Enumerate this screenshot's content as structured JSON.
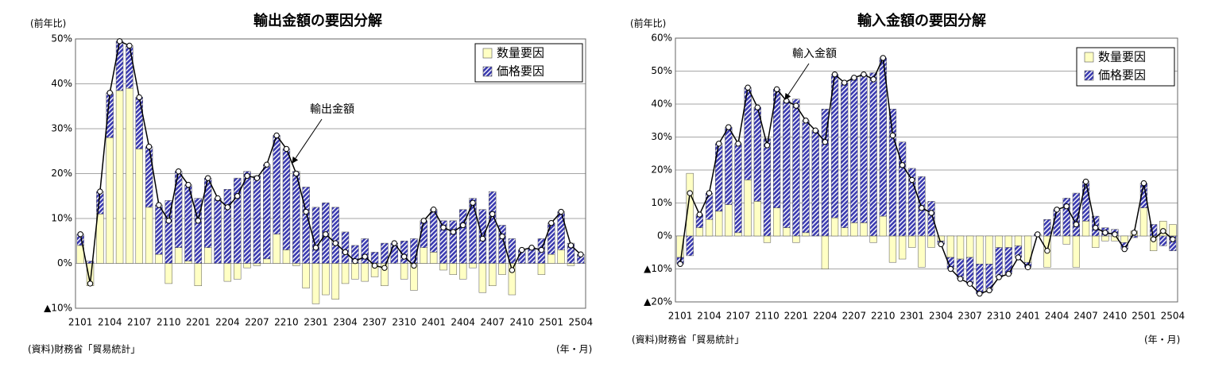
{
  "chart_data": [
    {
      "type": "bar",
      "title": "輸出金額の要因分解",
      "y_label": "(前年比)",
      "x_label": "(年・月)",
      "source": "(資料)財務省「貿易統計」",
      "legend": "upper right",
      "grid": true,
      "categories": [
        "2101",
        null,
        null,
        "2104",
        null,
        null,
        "2107",
        null,
        null,
        "2110",
        null,
        null,
        "2201",
        null,
        null,
        "2204",
        null,
        null,
        "2207",
        null,
        null,
        "2210",
        null,
        null,
        "2301",
        null,
        null,
        "2304",
        null,
        null,
        "2307",
        null,
        null,
        "2310",
        null,
        null,
        "2401",
        null,
        null,
        "2404",
        null,
        null,
        "2407",
        null,
        null,
        "2410",
        null,
        null,
        "2501",
        null,
        null,
        "2504"
      ],
      "ylim": [
        -10,
        50
      ],
      "yticks": [
        {
          "value": -10,
          "label": "▲10%"
        },
        {
          "value": 0,
          "label": "0%"
        },
        {
          "value": 10,
          "label": "10%"
        },
        {
          "value": 20,
          "label": "20%"
        },
        {
          "value": 30,
          "label": "30%"
        },
        {
          "value": 40,
          "label": "40%"
        },
        {
          "value": 50,
          "label": "50%"
        }
      ],
      "series": [
        {
          "name": "数量要因",
          "color": "#ffffc4",
          "values": [
            4,
            -5,
            11,
            28,
            38.5,
            39,
            25.5,
            12.5,
            2,
            -4.5,
            3.5,
            0.5,
            -5,
            3.5,
            0,
            -4,
            -3.5,
            -1,
            -0.5,
            1,
            6.5,
            3,
            -0.5,
            -5.5,
            -9,
            -7,
            -8,
            -4.5,
            -3.5,
            -4,
            -3,
            -5,
            0,
            -3.5,
            -6,
            3.5,
            2.5,
            -1.5,
            -2.5,
            -3.5,
            -1,
            -6.5,
            -5,
            -2.5,
            -7,
            0,
            0,
            -2.5,
            2,
            3,
            -0.5,
            0
          ]
        },
        {
          "name": "価格要因",
          "color": "#3a3ab0",
          "values": [
            2.5,
            0.5,
            5,
            10,
            11,
            9.5,
            11.5,
            13.5,
            11,
            14,
            17,
            17,
            14.5,
            15.5,
            14.5,
            16.5,
            19,
            20.5,
            19.5,
            21,
            22,
            22.5,
            20.5,
            17,
            12.5,
            13.5,
            12.5,
            7,
            4,
            5.5,
            2.5,
            4.5,
            4.5,
            5,
            5.5,
            6,
            9.5,
            9.5,
            9.5,
            12,
            14.5,
            12,
            16,
            8.5,
            5.5,
            3,
            3.5,
            5.5,
            7,
            8.5,
            4.5,
            2
          ]
        },
        {
          "name": "輸出金額",
          "type": "line",
          "color": "#000000",
          "values": [
            6.5,
            -4.5,
            16,
            38,
            49.5,
            48.5,
            37,
            26,
            13,
            9.5,
            20.5,
            17.5,
            9.5,
            19,
            14.5,
            12.5,
            15,
            19.5,
            19,
            22,
            28.5,
            25.5,
            20,
            11.5,
            3.5,
            6.5,
            4.5,
            2.5,
            0.5,
            1.5,
            -0.5,
            -1,
            4.5,
            1.5,
            -0.5,
            9.5,
            12,
            8,
            7,
            8.5,
            13.5,
            5.5,
            11,
            6,
            -1.5,
            3,
            3.5,
            3,
            9,
            11.5,
            4,
            2
          ]
        }
      ]
    },
    {
      "type": "bar",
      "title": "輸入金額の要因分解",
      "y_label": "(前年比)",
      "x_label": "(年・月)",
      "source": "(資料)財務省「貿易統計」",
      "legend": "upper right",
      "grid": true,
      "categories": [
        "2101",
        null,
        null,
        "2104",
        null,
        null,
        "2107",
        null,
        null,
        "2110",
        null,
        null,
        "2201",
        null,
        null,
        "2204",
        null,
        null,
        "2207",
        null,
        null,
        "2210",
        null,
        null,
        "2301",
        null,
        null,
        "2304",
        null,
        null,
        "2307",
        null,
        null,
        "2310",
        null,
        null,
        "2401",
        null,
        null,
        "2404",
        null,
        null,
        "2407",
        null,
        null,
        "2410",
        null,
        null,
        "2501",
        null,
        null,
        "2504"
      ],
      "ylim": [
        -20,
        60
      ],
      "yticks": [
        {
          "value": -20,
          "label": "▲20%"
        },
        {
          "value": -10,
          "label": "▲10%"
        },
        {
          "value": 0,
          "label": "0%"
        },
        {
          "value": 10,
          "label": "10%"
        },
        {
          "value": 20,
          "label": "20%"
        },
        {
          "value": 30,
          "label": "30%"
        },
        {
          "value": 40,
          "label": "40%"
        },
        {
          "value": 50,
          "label": "50%"
        },
        {
          "value": 60,
          "label": "60%"
        }
      ],
      "series": [
        {
          "name": "数量要因",
          "color": "#ffffc4",
          "values": [
            -6.5,
            19,
            2.5,
            5,
            7.5,
            9.5,
            1,
            17,
            10.5,
            -2,
            8.5,
            2.5,
            -2,
            1,
            0,
            -10,
            5.5,
            2.5,
            4,
            4,
            -2,
            6,
            -8,
            -7,
            -3.5,
            -9.5,
            -3.5,
            -1.5,
            -6.5,
            -7,
            -6.5,
            -8.5,
            -8.5,
            -3.5,
            -3.5,
            -3,
            -8,
            0,
            -9.5,
            0,
            -2.5,
            -9.5,
            4.5,
            -3.5,
            -1.5,
            -1.5,
            -2,
            1.5,
            8.5,
            -4.5,
            4.5,
            3.5
          ]
        },
        {
          "name": "価格要因",
          "color": "#3a3ab0",
          "values": [
            -2,
            -6,
            4,
            8,
            20.5,
            23.5,
            27,
            28,
            28.5,
            29.5,
            36,
            38.5,
            41.5,
            34,
            32,
            38.5,
            43.5,
            44,
            44,
            45,
            49.5,
            48,
            38.5,
            28.5,
            20.5,
            18,
            10.5,
            -1,
            -3.5,
            -6,
            -8,
            -9,
            -8,
            -9,
            -8,
            -3.5,
            -1.5,
            0.5,
            5,
            8,
            11.5,
            13,
            12,
            6,
            2.5,
            2,
            -2,
            -0.5,
            7.5,
            3.5,
            -3,
            -4.5
          ]
        },
        {
          "name": "輸入金額",
          "type": "line",
          "color": "#000000",
          "values": [
            -8.5,
            13,
            6.5,
            13,
            28,
            33,
            28,
            45,
            39,
            27.5,
            44.5,
            41,
            39.5,
            35,
            32,
            28.5,
            49,
            46.5,
            48,
            49,
            47.5,
            54,
            30.5,
            21.5,
            17,
            8.5,
            7,
            -2.5,
            -10,
            -13,
            -14.5,
            -17.5,
            -16.5,
            -12.5,
            -11.5,
            -6.5,
            -9.5,
            0.5,
            -4.5,
            8,
            9,
            3.5,
            16.5,
            2.5,
            1,
            0.5,
            -4,
            1,
            16,
            -1,
            1.5,
            -1
          ]
        }
      ]
    }
  ]
}
